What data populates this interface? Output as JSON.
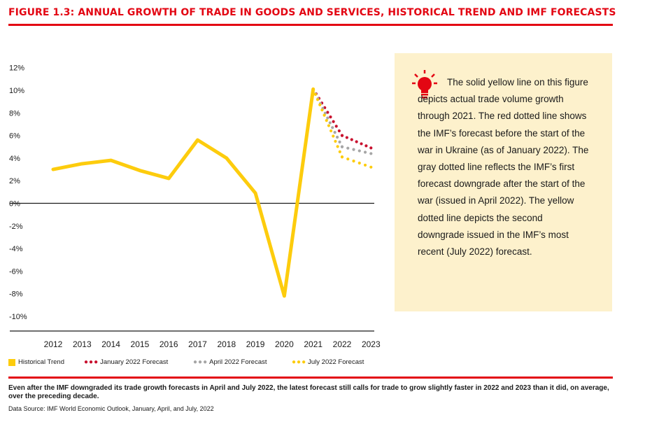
{
  "figure_title": "FIGURE 1.3: ANNUAL GROWTH OF TRADE IN GOODS AND SERVICES, HISTORICAL TREND AND IMF FORECASTS",
  "note": {
    "icon": "lightbulb-icon",
    "text": "The solid yellow line on this figure depicts actual trade volume growth through 2021. The red dotted line shows the IMF’s forecast before the start of the war in Ukraine (as of January 2022). The gray dotted line reflects the IMF’s first forecast downgrade after the start of the war (issued in April 2022). The yellow dotted line depicts the second downgrade issued in the IMF’s most recent (July 2022) forecast."
  },
  "legend": {
    "historical": "Historical Trend",
    "jan": "January 2022 Forecast",
    "apr": "April 2022 Forecast",
    "jul": "July 2022 Forecast"
  },
  "caption": "Even after the IMF downgraded its trade growth forecasts in April and July 2022, the latest forecast still calls for trade to grow slightly faster in 2022 and 2023 than it did, on average, over the preceding decade.",
  "source": "Data Source: IMF World Economic Outlook, January, April, and July, 2022",
  "colors": {
    "accent": "#e30613",
    "historical": "#fdcc0d",
    "jan": "#c8102e",
    "apr": "#a6a6a6",
    "jul": "#fdcc0d",
    "note_bg": "#fdf1cc"
  },
  "chart_data": {
    "type": "line",
    "title": "",
    "xlabel": "",
    "ylabel": "",
    "categories": [
      "2012",
      "2013",
      "2014",
      "2015",
      "2016",
      "2017",
      "2018",
      "2019",
      "2020",
      "2021",
      "2022",
      "2023"
    ],
    "y_ticks": [
      "12%",
      "10%",
      "8%",
      "6%",
      "4%",
      "2%",
      "0%",
      "-2%",
      "-4%",
      "-6%",
      "-8%",
      "-10%"
    ],
    "ylim": [
      -12,
      12
    ],
    "grid": false,
    "legend_position": "bottom",
    "series": [
      {
        "name": "Historical Trend",
        "style": "solid",
        "color": "#fdcc0d",
        "x": [
          "2012",
          "2013",
          "2014",
          "2015",
          "2016",
          "2017",
          "2018",
          "2019",
          "2020",
          "2021"
        ],
        "values": [
          3.0,
          3.5,
          3.8,
          2.9,
          2.2,
          5.6,
          4.0,
          0.9,
          -8.2,
          10.1
        ]
      },
      {
        "name": "January 2022 Forecast",
        "style": "dotted",
        "color": "#c8102e",
        "x": [
          "2021",
          "2022",
          "2023"
        ],
        "values": [
          10.1,
          6.0,
          4.9
        ]
      },
      {
        "name": "April 2022 Forecast",
        "style": "dotted",
        "color": "#a6a6a6",
        "x": [
          "2021",
          "2022",
          "2023"
        ],
        "values": [
          10.1,
          5.0,
          4.4
        ]
      },
      {
        "name": "July 2022 Forecast",
        "style": "dotted",
        "color": "#fdcc0d",
        "x": [
          "2021",
          "2022",
          "2023"
        ],
        "values": [
          10.1,
          4.1,
          3.2
        ]
      }
    ]
  }
}
